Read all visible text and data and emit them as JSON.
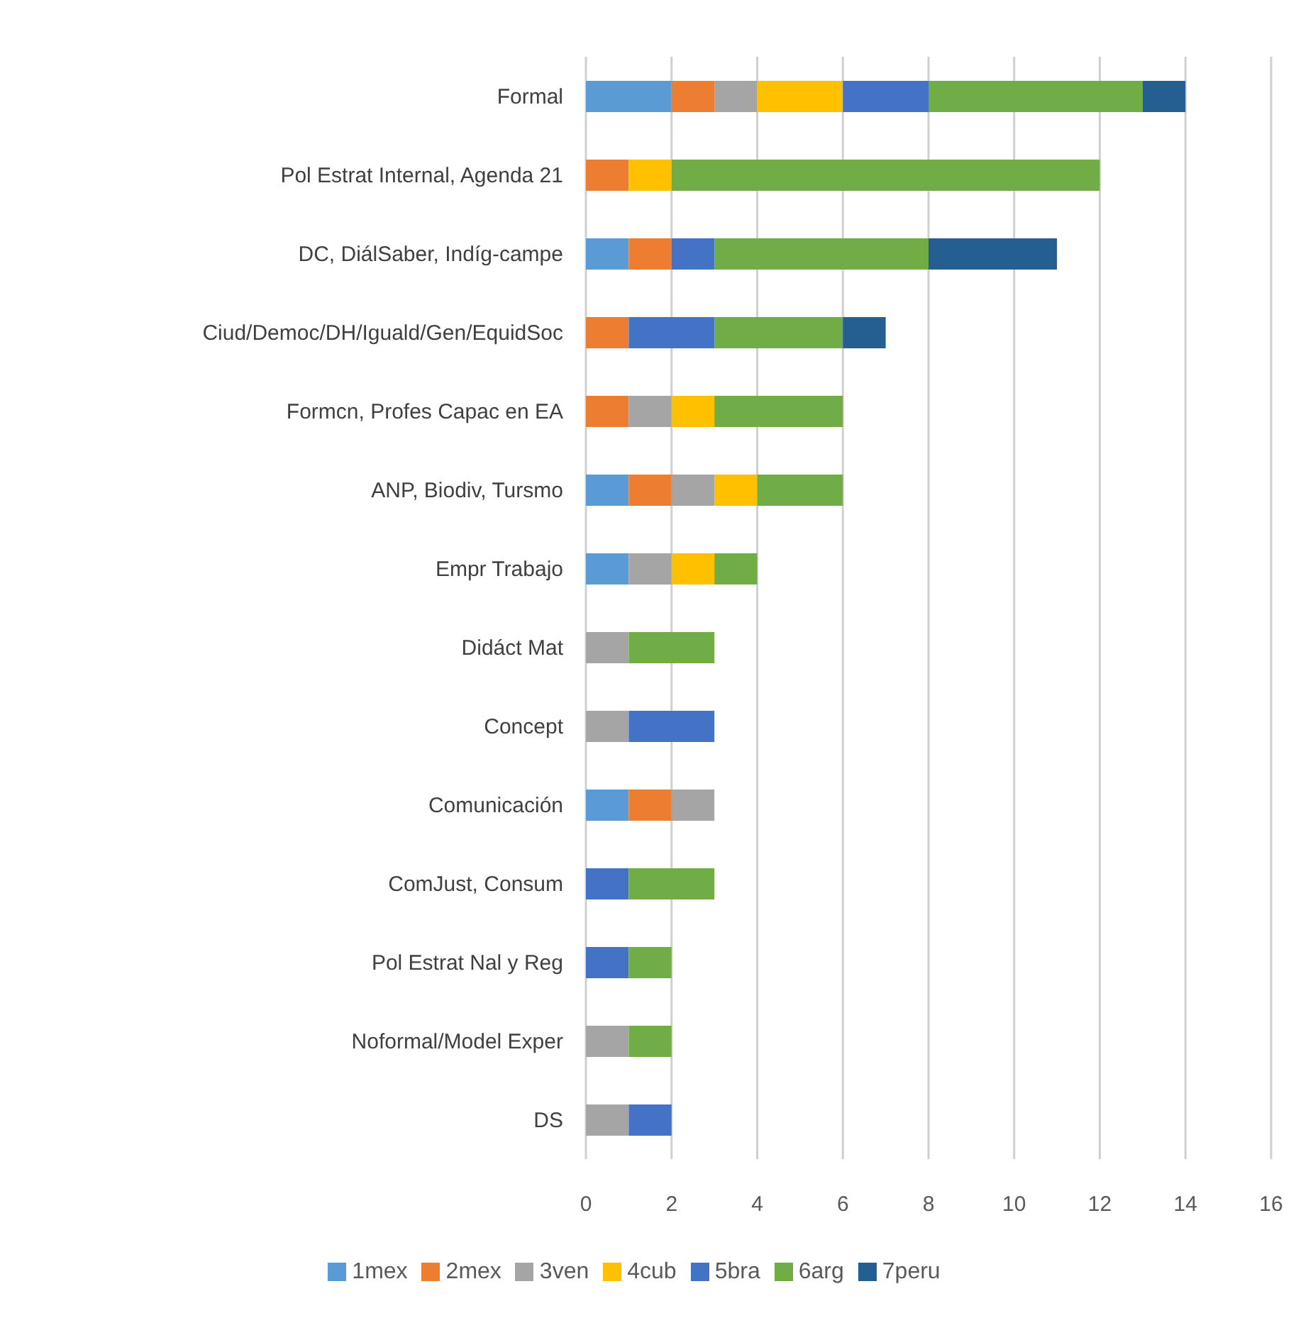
{
  "chart_data": {
    "type": "bar",
    "orientation": "horizontal",
    "stacked": true,
    "categories": [
      "Formal",
      "Pol Estrat Internal, Agenda 21",
      "DC, DiálSaber, Indíg-campe",
      "Ciud/Democ/DH/Iguald/Gen/EquidSoc",
      "Formcn, Profes Capac en EA",
      "ANP, Biodiv, Tursmo",
      "Empr Trabajo",
      "Didáct Mat",
      "Concept",
      "Comunicación",
      "ComJust, Consum",
      "Pol Estrat Nal y Reg",
      "Noformal/Model Exper",
      "DS"
    ],
    "series": [
      {
        "name": "1mex",
        "color": "#5b9bd5",
        "values": [
          2,
          null,
          1,
          null,
          null,
          1,
          1,
          null,
          null,
          1,
          null,
          null,
          null,
          null
        ]
      },
      {
        "name": "2mex",
        "color": "#ed7d31",
        "values": [
          1,
          1,
          1,
          1,
          1,
          1,
          null,
          null,
          null,
          1,
          null,
          null,
          null,
          null
        ]
      },
      {
        "name": "3ven",
        "color": "#a5a5a5",
        "values": [
          1,
          null,
          null,
          null,
          1,
          1,
          1,
          1,
          1,
          1,
          null,
          null,
          1,
          1
        ]
      },
      {
        "name": "4cub",
        "color": "#ffc000",
        "values": [
          2,
          1,
          null,
          null,
          1,
          1,
          1,
          null,
          null,
          null,
          null,
          null,
          null,
          null
        ]
      },
      {
        "name": "5bra",
        "color": "#4472c4",
        "values": [
          2,
          null,
          1,
          2,
          null,
          null,
          null,
          null,
          2,
          null,
          1,
          1,
          null,
          1
        ]
      },
      {
        "name": "6arg",
        "color": "#70ad47",
        "values": [
          5,
          10,
          5,
          3,
          3,
          2,
          1,
          2,
          null,
          null,
          2,
          1,
          1,
          null
        ]
      },
      {
        "name": "7peru",
        "color": "#255e91",
        "values": [
          1,
          null,
          3,
          1,
          null,
          null,
          null,
          null,
          null,
          null,
          null,
          null,
          null,
          null
        ]
      }
    ],
    "xlim": [
      0,
      16
    ],
    "xticks": [
      0,
      2,
      4,
      6,
      8,
      10,
      12,
      14,
      16
    ],
    "grid": "x",
    "legend": "bottom"
  }
}
